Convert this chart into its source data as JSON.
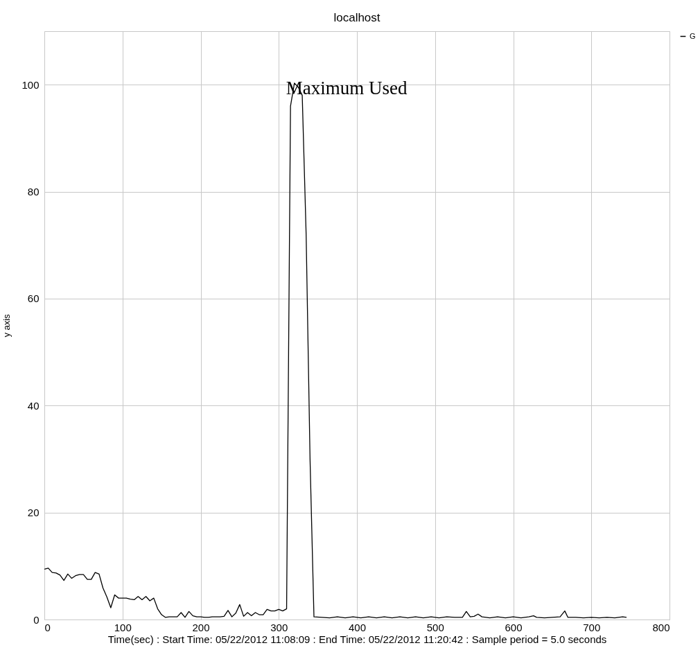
{
  "chart_data": {
    "type": "line",
    "title": "localhost",
    "xlabel": "Time(sec) : Start Time: 05/22/2012 11:08:09  :  End Time: 05/22/2012 11:20:42 : Sample period = 5.0 seconds",
    "ylabel": "y axis",
    "x": [
      0,
      5,
      10,
      15,
      20,
      25,
      30,
      35,
      40,
      45,
      50,
      55,
      60,
      65,
      70,
      75,
      80,
      85,
      90,
      95,
      100,
      105,
      110,
      115,
      120,
      125,
      130,
      135,
      140,
      145,
      150,
      155,
      160,
      165,
      170,
      175,
      180,
      185,
      190,
      195,
      200,
      205,
      210,
      215,
      220,
      225,
      230,
      235,
      240,
      245,
      250,
      255,
      260,
      265,
      270,
      275,
      280,
      285,
      290,
      295,
      300,
      305,
      310,
      315,
      320,
      325,
      330,
      335,
      340,
      345,
      355,
      365,
      375,
      385,
      395,
      405,
      415,
      425,
      435,
      445,
      455,
      465,
      475,
      485,
      495,
      505,
      515,
      525,
      535,
      540,
      545,
      550,
      555,
      560,
      565,
      570,
      580,
      590,
      600,
      610,
      620,
      626,
      630,
      640,
      650,
      660,
      666,
      670,
      680,
      690,
      700,
      710,
      720,
      730,
      740,
      745
    ],
    "series": [
      {
        "name": "G",
        "color": "#000000",
        "values": [
          9.4,
          9.6,
          8.8,
          8.7,
          8.3,
          7.3,
          8.5,
          7.7,
          8.2,
          8.4,
          8.4,
          7.5,
          7.5,
          8.8,
          8.5,
          5.9,
          4.2,
          2.2,
          4.6,
          4.0,
          4.0,
          4.0,
          3.8,
          3.7,
          4.3,
          3.7,
          4.3,
          3.5,
          4.0,
          2.0,
          0.9,
          0.4,
          0.5,
          0.5,
          0.5,
          1.3,
          0.4,
          1.5,
          0.7,
          0.5,
          0.5,
          0.4,
          0.4,
          0.5,
          0.5,
          0.5,
          0.6,
          1.7,
          0.5,
          1.2,
          2.8,
          0.6,
          1.3,
          0.7,
          1.3,
          0.9,
          0.9,
          1.9,
          1.6,
          1.6,
          1.9,
          1.6,
          2.0,
          96,
          100.3,
          99.5,
          98,
          72,
          30,
          0.5,
          0.4,
          0.3,
          0.5,
          0.3,
          0.5,
          0.3,
          0.5,
          0.3,
          0.5,
          0.3,
          0.5,
          0.3,
          0.5,
          0.3,
          0.5,
          0.3,
          0.5,
          0.4,
          0.4,
          1.5,
          0.5,
          0.6,
          1.0,
          0.5,
          0.4,
          0.3,
          0.5,
          0.3,
          0.5,
          0.3,
          0.5,
          0.7,
          0.4,
          0.3,
          0.4,
          0.5,
          1.6,
          0.4,
          0.4,
          0.3,
          0.4,
          0.3,
          0.4,
          0.3,
          0.5,
          0.4
        ]
      }
    ],
    "xlim": [
      0,
      800
    ],
    "xticks": [
      0,
      100,
      200,
      300,
      400,
      500,
      600,
      700,
      800
    ],
    "ylim": [
      0,
      110
    ],
    "yticks": [
      0,
      20,
      40,
      60,
      80,
      100
    ],
    "grid": true,
    "legend": "top right",
    "annotations": [
      {
        "text": "Maximum Used",
        "x": 320,
        "y": 100
      }
    ]
  }
}
